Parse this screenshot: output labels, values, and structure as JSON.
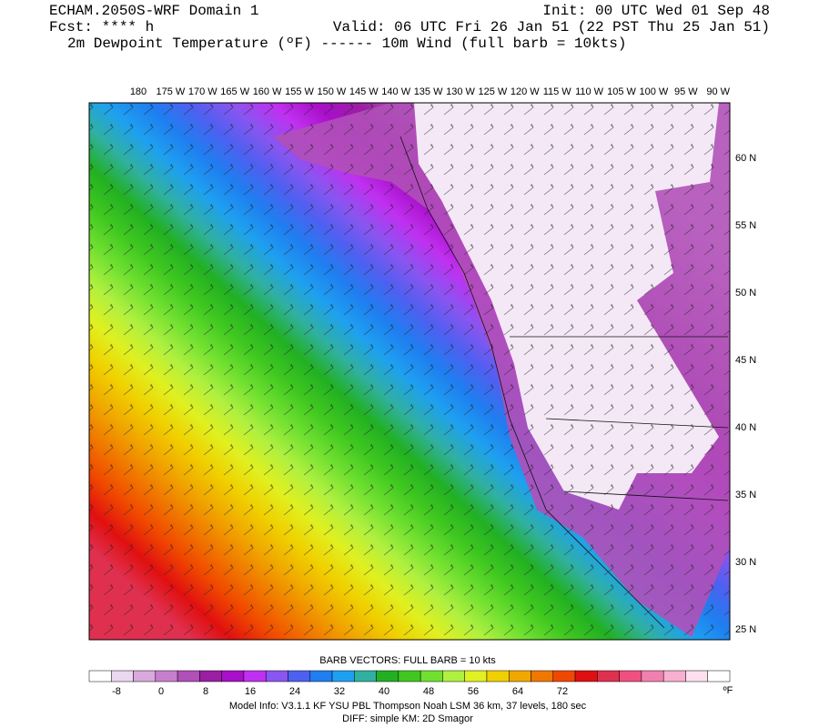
{
  "header": {
    "model": "ECHAM.2050S-WRF Domain 1",
    "init": "Init: 00 UTC Wed 01 Sep 48",
    "fcst": "Fcst: **** h",
    "valid": "Valid: 06 UTC Fri 26 Jan 51 (22 PST Thu 25 Jan 51)",
    "fields": "2m Dewpoint Temperature (ºF) ------ 10m Wind (full barb = 10kts)"
  },
  "map": {
    "longitudes": [
      "180",
      "175 W",
      "170 W",
      "165 W",
      "160 W",
      "155 W",
      "150 W",
      "145 W",
      "140 W",
      "135 W",
      "130 W",
      "125 W",
      "120 W",
      "115 W",
      "110 W",
      "105 W",
      "100 W",
      "95 W",
      "90 W"
    ],
    "latitudes": [
      "60 N",
      "55 N",
      "50 N",
      "45 N",
      "40 N",
      "35 N",
      "30 N",
      "25 N"
    ]
  },
  "colorbar": {
    "title": "BARB VECTORS:  FULL BARB = 10 kts",
    "labels": [
      -8,
      0,
      8,
      16,
      24,
      32,
      40,
      48,
      56,
      64,
      72
    ],
    "unit": "ºF",
    "colors": [
      "#ffffff",
      "#ecd7f0",
      "#d9a9dd",
      "#c67fcd",
      "#b050b8",
      "#9a1fa3",
      "#a80fc8",
      "#c030f0",
      "#8a55f0",
      "#4e60f0",
      "#1f7ef0",
      "#1ea0f0",
      "#30b0a0",
      "#22b022",
      "#40c820",
      "#70e030",
      "#b0f040",
      "#e0f020",
      "#f0d000",
      "#f0a800",
      "#f07800",
      "#f04800",
      "#e01010",
      "#e03050",
      "#f05080",
      "#f080b0",
      "#f8b0d0",
      "#fce0f0",
      "#ffffff"
    ]
  },
  "footer": {
    "model_info": "Model Info: V3.1.1   KF     YSU PBL  Thompson    Noah LSM  36 km,    37 levels,  180 sec",
    "diff": "DIFF: simple KM: 2D Smagor"
  }
}
